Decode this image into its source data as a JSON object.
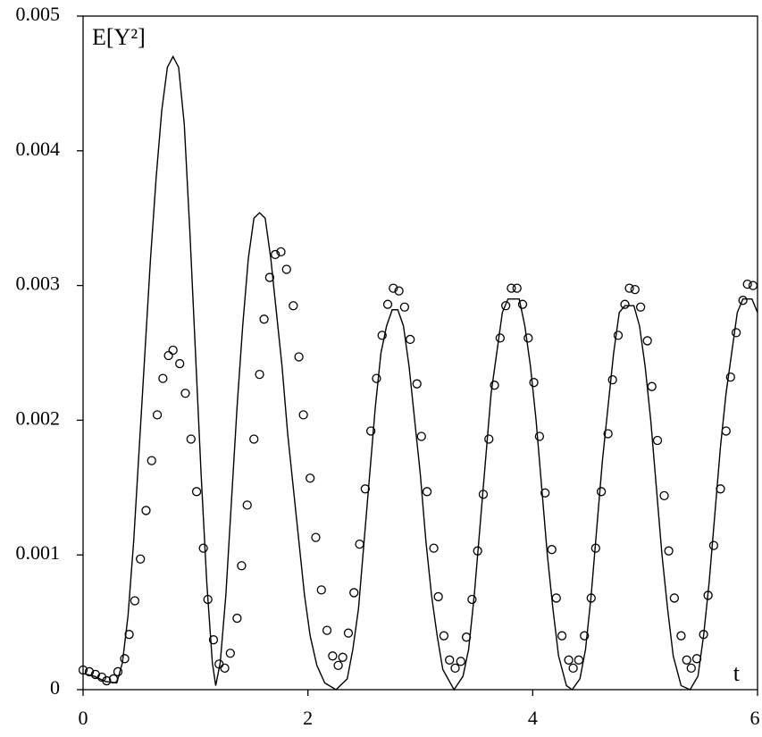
{
  "chart_data": {
    "type": "scatter",
    "annotations": [
      "E[Y²]",
      "t"
    ],
    "xlim": [
      0,
      6
    ],
    "xticks": [
      0,
      2,
      4,
      6
    ],
    "ylim": [
      0,
      0.005
    ],
    "yticks": [
      0,
      0.001,
      0.002,
      0.003,
      0.004,
      0.005
    ],
    "series": [
      {
        "type": "line",
        "color": "#000000",
        "x": [
          0,
          0.1,
          0.2,
          0.3,
          0.35,
          0.4,
          0.45,
          0.5,
          0.55,
          0.6,
          0.65,
          0.7,
          0.75,
          0.8,
          0.85,
          0.9,
          0.95,
          1.0,
          1.05,
          1.1,
          1.15,
          1.18,
          1.22,
          1.27,
          1.32,
          1.37,
          1.42,
          1.47,
          1.52,
          1.57,
          1.62,
          1.67,
          1.72,
          1.77,
          1.82,
          1.87,
          1.92,
          1.97,
          2.02,
          2.08,
          2.15,
          2.25,
          2.35,
          2.4,
          2.45,
          2.5,
          2.55,
          2.6,
          2.65,
          2.7,
          2.75,
          2.8,
          2.85,
          2.9,
          2.95,
          3.0,
          3.05,
          3.1,
          3.15,
          3.2,
          3.3,
          3.38,
          3.43,
          3.48,
          3.53,
          3.58,
          3.63,
          3.68,
          3.73,
          3.78,
          3.88,
          3.93,
          3.98,
          4.03,
          4.08,
          4.13,
          4.18,
          4.23,
          4.3,
          4.35,
          4.42,
          4.47,
          4.52,
          4.57,
          4.62,
          4.67,
          4.72,
          4.77,
          4.82,
          4.9,
          4.95,
          5.0,
          5.05,
          5.1,
          5.15,
          5.2,
          5.25,
          5.32,
          5.4,
          5.47,
          5.52,
          5.57,
          5.62,
          5.67,
          5.72,
          5.77,
          5.82,
          5.87,
          5.95,
          6.0
        ],
        "values": [
          0.00012,
          0.0001,
          6e-05,
          5e-05,
          0.0002,
          0.00055,
          0.0011,
          0.0018,
          0.0025,
          0.0032,
          0.0038,
          0.0043,
          0.00462,
          0.0047,
          0.00462,
          0.0042,
          0.0034,
          0.0025,
          0.0016,
          0.0008,
          0.0002,
          3e-05,
          0.0002,
          0.0007,
          0.0014,
          0.0021,
          0.0027,
          0.0032,
          0.0035,
          0.00354,
          0.0035,
          0.0032,
          0.0028,
          0.0024,
          0.0019,
          0.0015,
          0.0011,
          0.0007,
          0.0004,
          0.00018,
          5e-05,
          0,
          8e-05,
          0.0003,
          0.0006,
          0.0011,
          0.0016,
          0.0021,
          0.0025,
          0.0027,
          0.00282,
          0.00282,
          0.0027,
          0.0024,
          0.002,
          0.0016,
          0.0011,
          0.0007,
          0.0004,
          0.00015,
          0,
          0.0001,
          0.0003,
          0.0007,
          0.0012,
          0.0017,
          0.0022,
          0.0025,
          0.0028,
          0.0029,
          0.0029,
          0.0027,
          0.0024,
          0.002,
          0.0015,
          0.001,
          0.0006,
          0.00025,
          3e-05,
          0,
          8e-05,
          0.0003,
          0.0007,
          0.0012,
          0.0017,
          0.0021,
          0.0025,
          0.0028,
          0.00285,
          0.00285,
          0.0027,
          0.0024,
          0.002,
          0.0015,
          0.001,
          0.0006,
          0.00025,
          3e-05,
          0,
          0.0001,
          0.0004,
          0.0008,
          0.0013,
          0.0018,
          0.0022,
          0.0025,
          0.0028,
          0.0029,
          0.0029,
          0.0028
        ]
      },
      {
        "type": "scatter",
        "color": "#000000",
        "x": [
          0,
          0.056,
          0.11,
          0.167,
          0.21,
          0.27,
          0.31,
          0.37,
          0.41,
          0.46,
          0.51,
          0.56,
          0.61,
          0.66,
          0.71,
          0.76,
          0.8,
          0.86,
          0.91,
          0.96,
          1.01,
          1.07,
          1.11,
          1.16,
          1.21,
          1.26,
          1.31,
          1.37,
          1.41,
          1.46,
          1.52,
          1.57,
          1.61,
          1.66,
          1.71,
          1.76,
          1.81,
          1.87,
          1.92,
          1.96,
          2.02,
          2.07,
          2.12,
          2.17,
          2.22,
          2.27,
          2.31,
          2.36,
          2.41,
          2.46,
          2.51,
          2.56,
          2.61,
          2.66,
          2.71,
          2.76,
          2.81,
          2.86,
          2.91,
          2.97,
          3.01,
          3.06,
          3.12,
          3.16,
          3.21,
          3.26,
          3.31,
          3.36,
          3.41,
          3.46,
          3.51,
          3.56,
          3.61,
          3.66,
          3.71,
          3.76,
          3.81,
          3.86,
          3.91,
          3.96,
          4.01,
          4.06,
          4.11,
          4.17,
          4.21,
          4.26,
          4.32,
          4.36,
          4.41,
          4.46,
          4.52,
          4.56,
          4.61,
          4.67,
          4.71,
          4.76,
          4.82,
          4.86,
          4.91,
          4.96,
          5.02,
          5.06,
          5.11,
          5.17,
          5.21,
          5.26,
          5.32,
          5.37,
          5.41,
          5.46,
          5.52,
          5.56,
          5.61,
          5.67,
          5.72,
          5.76,
          5.81,
          5.87,
          5.91,
          5.96
        ],
        "values": [
          0.000146,
          0.000133,
          0.000113,
          9.3e-05,
          6.6e-05,
          8e-05,
          0.000133,
          0.00023,
          0.00041,
          0.00066,
          0.00097,
          0.00133,
          0.0017,
          0.00204,
          0.00231,
          0.00248,
          0.00252,
          0.00242,
          0.0022,
          0.00186,
          0.00147,
          0.00105,
          0.00067,
          0.00037,
          0.00019,
          0.00016,
          0.00027,
          0.00053,
          0.00092,
          0.00137,
          0.00186,
          0.00234,
          0.00275,
          0.00306,
          0.00323,
          0.00325,
          0.00312,
          0.00285,
          0.00247,
          0.00204,
          0.00157,
          0.00113,
          0.00074,
          0.00044,
          0.00025,
          0.00018,
          0.00024,
          0.00042,
          0.00072,
          0.00108,
          0.00149,
          0.00192,
          0.00231,
          0.00263,
          0.00286,
          0.00298,
          0.00296,
          0.00284,
          0.0026,
          0.00227,
          0.00188,
          0.00147,
          0.00105,
          0.00069,
          0.0004,
          0.00022,
          0.00016,
          0.00021,
          0.00039,
          0.00067,
          0.00103,
          0.00145,
          0.00186,
          0.00226,
          0.00261,
          0.00285,
          0.00298,
          0.00298,
          0.00286,
          0.00261,
          0.00228,
          0.00188,
          0.00146,
          0.00104,
          0.00068,
          0.0004,
          0.00022,
          0.00016,
          0.00022,
          0.0004,
          0.00068,
          0.00105,
          0.00147,
          0.0019,
          0.0023,
          0.00263,
          0.00286,
          0.00298,
          0.00297,
          0.00284,
          0.00259,
          0.00225,
          0.00185,
          0.00144,
          0.00103,
          0.00068,
          0.0004,
          0.00022,
          0.00016,
          0.00023,
          0.00041,
          0.0007,
          0.00107,
          0.00149,
          0.00192,
          0.00232,
          0.00265,
          0.00289,
          0.00301,
          0.003
        ]
      }
    ]
  }
}
